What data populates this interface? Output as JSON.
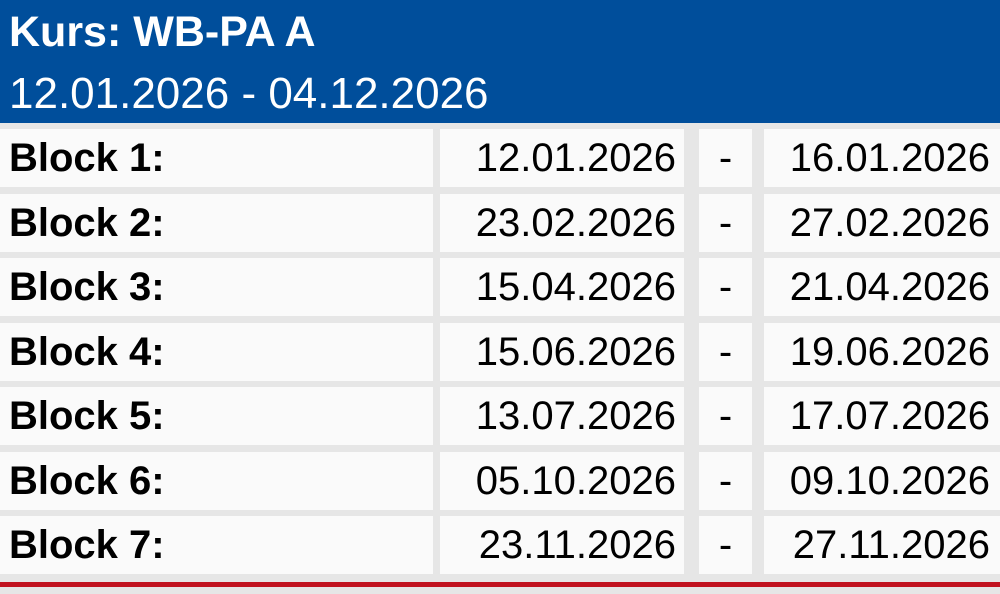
{
  "header": {
    "title": "Kurs: WB-PA A",
    "date_range": "12.01.2026 - 04.12.2026"
  },
  "blocks": [
    {
      "label": "Block 1:",
      "start": "12.01.2026",
      "sep": "-",
      "end": "16.01.2026"
    },
    {
      "label": "Block 2:",
      "start": "23.02.2026",
      "sep": "-",
      "end": "27.02.2026"
    },
    {
      "label": "Block 3:",
      "start": "15.04.2026",
      "sep": "-",
      "end": "21.04.2026"
    },
    {
      "label": "Block 4:",
      "start": "15.06.2026",
      "sep": "-",
      "end": "19.06.2026"
    },
    {
      "label": "Block 5:",
      "start": "13.07.2026",
      "sep": "-",
      "end": "17.07.2026"
    },
    {
      "label": "Block 6:",
      "start": "05.10.2026",
      "sep": "-",
      "end": "09.10.2026"
    },
    {
      "label": "Block 7:",
      "start": "23.11.2026",
      "sep": "-",
      "end": "27.11.2026"
    }
  ],
  "colors": {
    "header_bg": "#004e9b",
    "header_text": "#ffffff",
    "cell_bg": "#fafafa",
    "gap_bg": "#e6e6e6",
    "rule": "#c1121f"
  }
}
